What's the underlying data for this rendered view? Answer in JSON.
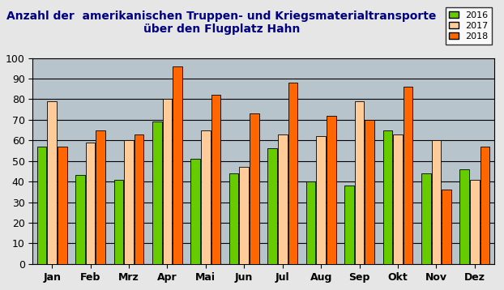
{
  "chart_data": {
    "type": "bar",
    "title": "Anzahl der  amerikanischen Truppen- und Kriegsmaterialtransporte\nüber den Flugplatz Hahn",
    "categories": [
      "Jan",
      "Feb",
      "Mrz",
      "Apr",
      "Mai",
      "Jun",
      "Jul",
      "Aug",
      "Sep",
      "Okt",
      "Nov",
      "Dez"
    ],
    "series": [
      {
        "name": "2016",
        "color": "#66cc00",
        "values": [
          57,
          43,
          41,
          69,
          51,
          44,
          56,
          40,
          38,
          65,
          44,
          46
        ]
      },
      {
        "name": "2017",
        "color": "#ffcc99",
        "values": [
          79,
          59,
          60,
          80,
          65,
          47,
          63,
          62,
          79,
          63,
          60,
          41
        ]
      },
      {
        "name": "2018",
        "color": "#ff6600",
        "values": [
          57,
          65,
          63,
          96,
          82,
          73,
          88,
          72,
          70,
          86,
          36,
          57
        ]
      }
    ],
    "ylim": [
      0,
      100
    ],
    "yticks": [
      0,
      10,
      20,
      30,
      40,
      50,
      60,
      70,
      80,
      90,
      100
    ],
    "grid": true,
    "legend": "upper right"
  }
}
